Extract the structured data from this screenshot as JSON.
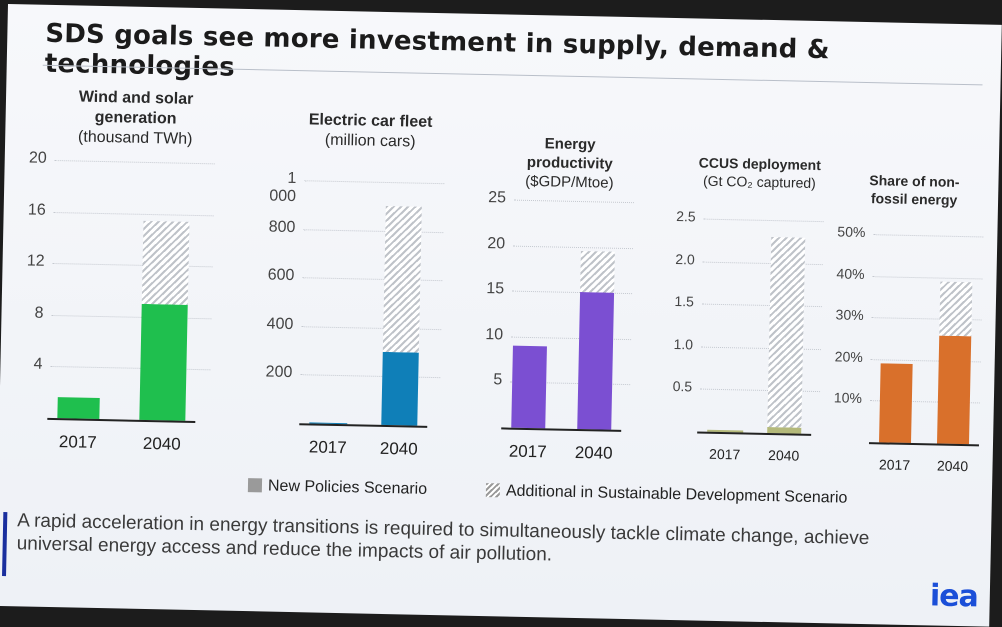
{
  "title": "SDS goals see more investment in supply, demand & technologies",
  "legend": {
    "npsa": "New Policies Scenario",
    "sds": "Additional in Sustainable Development Scenario"
  },
  "footer_text": "A rapid acceleration in energy transitions is required to simultaneously tackle climate change, achieve universal energy access and reduce the impacts of air pollution.",
  "logo": "iea",
  "colors": {
    "wind": "#1fbf4e",
    "ev": "#0f7fb8",
    "productivity": "#7b4fd2",
    "ccus": "#b4b97a",
    "nonfossil": "#d9702b",
    "hatch": "#bfc3c9"
  },
  "chart_data": [
    {
      "type": "bar",
      "title_main": "Wind and solar generation",
      "title_sub": "(thousand TWh)",
      "categories": [
        "2017",
        "2040"
      ],
      "ticks": [
        "4",
        "8",
        "12",
        "16",
        "20"
      ],
      "ylim": [
        0,
        20
      ],
      "series": [
        {
          "name": "New Policies Scenario",
          "values": [
            1.6,
            9
          ]
        },
        {
          "name": "Additional in Sustainable Development Scenario",
          "values": [
            0,
            6.4
          ]
        }
      ]
    },
    {
      "type": "bar",
      "title_main": "Electric car fleet",
      "title_sub": "(million cars)",
      "categories": [
        "2017",
        "2040"
      ],
      "ticks": [
        "200",
        "400",
        "600",
        "800",
        "1 000"
      ],
      "ylim": [
        0,
        1000
      ],
      "series": [
        {
          "name": "New Policies Scenario",
          "values": [
            3,
            300
          ]
        },
        {
          "name": "Additional in Sustainable Development Scenario",
          "values": [
            0,
            600
          ]
        }
      ]
    },
    {
      "type": "bar",
      "title_main": "Energy productivity",
      "title_sub": "($GDP/Mtoe)",
      "categories": [
        "2017",
        "2040"
      ],
      "ticks": [
        "5",
        "10",
        "15",
        "20",
        "25"
      ],
      "ylim": [
        0,
        25
      ],
      "series": [
        {
          "name": "New Policies Scenario",
          "values": [
            9,
            15
          ]
        },
        {
          "name": "Additional in Sustainable Development Scenario",
          "values": [
            0,
            4.5
          ]
        }
      ]
    },
    {
      "type": "bar",
      "title_main": "CCUS deployment",
      "title_sub": "(Gt CO₂ captured)",
      "categories": [
        "2017",
        "2040"
      ],
      "ticks": [
        "0.5",
        "1.0",
        "1.5",
        "2.0",
        "2.5"
      ],
      "ylim": [
        0,
        2.5
      ],
      "series": [
        {
          "name": "New Policies Scenario",
          "values": [
            0.02,
            0.07
          ]
        },
        {
          "name": "Additional in Sustainable Development Scenario",
          "values": [
            0,
            2.23
          ]
        }
      ]
    },
    {
      "type": "bar",
      "title_main": "Share of non-fossil energy",
      "title_sub": "",
      "categories": [
        "2017",
        "2040"
      ],
      "ticks": [
        "10%",
        "20%",
        "30%",
        "40%",
        "50%"
      ],
      "ylim": [
        0,
        50
      ],
      "series": [
        {
          "name": "New Policies Scenario",
          "values": [
            19,
            26
          ]
        },
        {
          "name": "Additional in Sustainable Development Scenario",
          "values": [
            0,
            13
          ]
        }
      ]
    }
  ]
}
